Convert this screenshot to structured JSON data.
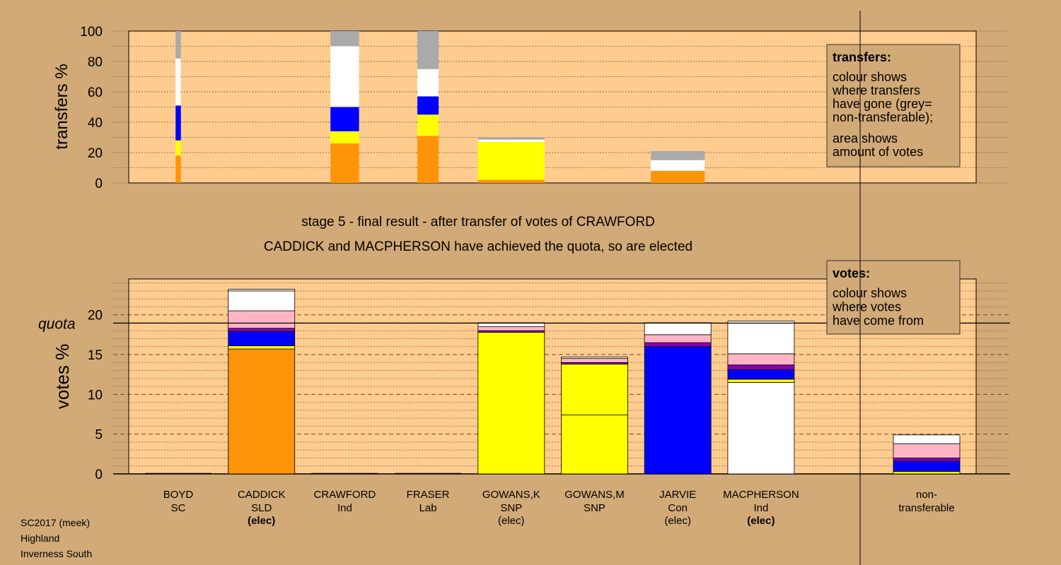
{
  "colors": {
    "background": "#d2aa78",
    "plot_bg": "#ffcc8f",
    "orange": "#ff9408",
    "yellow": "#ffff00",
    "blue": "#0000ff",
    "purple": "#8a00b0",
    "pink": "#ffb5c5",
    "white": "#ffffff",
    "grey": "#aaaaaa"
  },
  "header": {
    "stage_title": "stage 5 - final result - after transfer of votes of CRAWFORD",
    "elected_note": "CADDICK and MACPHERSON have achieved the quota, so are elected"
  },
  "footer": {
    "line1": "SC2017 (meek)",
    "line2": "Highland",
    "line3": "Inverness South"
  },
  "chart_data": [
    {
      "type": "bar",
      "stacked": true,
      "ylabel": "transfers %",
      "ylim": [
        0,
        100
      ],
      "yticks": [
        0,
        20,
        40,
        60,
        80,
        100
      ],
      "grid": true,
      "legend": {
        "title": "transfers:",
        "lines": [
          "colour shows",
          "where transfers",
          "have gone (grey=",
          "non-transferable);"
        ],
        "lines2": [
          "area shows",
          "amount of votes"
        ],
        "placement": "top-right"
      },
      "bars": [
        {
          "column": 0,
          "relative_width": 0.08,
          "segments": [
            {
              "color": "orange",
              "value": 18
            },
            {
              "color": "yellow",
              "value": 10
            },
            {
              "color": "blue",
              "value": 23
            },
            {
              "color": "white",
              "value": 31
            },
            {
              "color": "grey",
              "value": 18
            }
          ]
        },
        {
          "column": 2,
          "relative_width": 0.43,
          "segments": [
            {
              "color": "orange",
              "value": 26
            },
            {
              "color": "yellow",
              "value": 8
            },
            {
              "color": "blue",
              "value": 16
            },
            {
              "color": "white",
              "value": 40
            },
            {
              "color": "grey",
              "value": 10
            }
          ]
        },
        {
          "column": 3,
          "relative_width": 0.32,
          "segments": [
            {
              "color": "orange",
              "value": 31
            },
            {
              "color": "yellow",
              "value": 14
            },
            {
              "color": "blue",
              "value": 12
            },
            {
              "color": "white",
              "value": 18
            },
            {
              "color": "grey",
              "value": 25
            }
          ]
        },
        {
          "column": 4,
          "relative_width": 1.0,
          "segments": [
            {
              "color": "orange",
              "value": 2
            },
            {
              "color": "yellow",
              "value": 25
            },
            {
              "color": "white",
              "value": 1.5
            },
            {
              "color": "grey",
              "value": 1.5
            }
          ]
        },
        {
          "column": 6,
          "relative_width": 0.81,
          "segments": [
            {
              "color": "orange",
              "value": 8
            },
            {
              "color": "white",
              "value": 7
            },
            {
              "color": "grey",
              "value": 6
            }
          ]
        }
      ]
    },
    {
      "type": "bar",
      "stacked": true,
      "ylabel": "votes %",
      "ylim": [
        0,
        24
      ],
      "yticks": [
        0,
        5,
        10,
        15,
        20
      ],
      "quota": 18.95,
      "quota_label": "quota",
      "grid": true,
      "legend": {
        "title": "votes:",
        "lines": [
          "colour shows",
          "where votes",
          "have come from"
        ],
        "placement": "top-right"
      },
      "categories": [
        {
          "name": "BOYD",
          "party": "SC",
          "status": ""
        },
        {
          "name": "CADDICK",
          "party": "SLD",
          "status": "(elec)",
          "status_bold": true
        },
        {
          "name": "CRAWFORD",
          "party": "Ind",
          "status": ""
        },
        {
          "name": "FRASER",
          "party": "Lab",
          "status": ""
        },
        {
          "name": "GOWANS,K",
          "party": "SNP",
          "status": "(elec)",
          "status_bold": false
        },
        {
          "name": "GOWANS,M",
          "party": "SNP",
          "status": ""
        },
        {
          "name": "JARVIE",
          "party": "Con",
          "status": "(elec)",
          "status_bold": false
        },
        {
          "name": "MACPHERSON",
          "party": "Ind",
          "status": "(elec)",
          "status_bold": true
        },
        {
          "name": "non-",
          "party": "transferable",
          "status": ""
        }
      ],
      "stacks": [
        [],
        [
          {
            "color": "orange",
            "value": 15.7
          },
          {
            "color": "yellow",
            "value": 0.4
          },
          {
            "color": "blue",
            "value": 1.8
          },
          {
            "color": "purple",
            "value": 0.4
          },
          {
            "color": "pink",
            "value": 2.2
          },
          {
            "color": "white",
            "value": 2.5
          },
          {
            "color": "white",
            "value": 0.2
          }
        ],
        [],
        [],
        [
          {
            "color": "yellow",
            "value": 17.8
          },
          {
            "color": "purple",
            "value": 0.2
          },
          {
            "color": "pink",
            "value": 0.5
          },
          {
            "color": "white",
            "value": 0.5
          }
        ],
        [
          {
            "color": "yellow",
            "value": 7.4
          },
          {
            "color": "yellow",
            "value": 6.4
          },
          {
            "color": "purple",
            "value": 0.2
          },
          {
            "color": "pink",
            "value": 0.5
          },
          {
            "color": "white",
            "value": 0.2
          }
        ],
        [
          {
            "color": "blue",
            "value": 16.0
          },
          {
            "color": "purple",
            "value": 0.5
          },
          {
            "color": "pink",
            "value": 1.0
          },
          {
            "color": "white",
            "value": 1.5
          }
        ],
        [
          {
            "color": "white",
            "value": 11.5
          },
          {
            "color": "yellow",
            "value": 0.4
          },
          {
            "color": "blue",
            "value": 1.2
          },
          {
            "color": "purple",
            "value": 0.6
          },
          {
            "color": "pink",
            "value": 1.4
          },
          {
            "color": "white",
            "value": 4.1
          }
        ],
        [
          {
            "color": "yellow",
            "value": 0.3
          },
          {
            "color": "blue",
            "value": 1.3
          },
          {
            "color": "purple",
            "value": 0.4
          },
          {
            "color": "pink",
            "value": 1.8
          },
          {
            "color": "white",
            "value": 1.1
          }
        ]
      ]
    }
  ]
}
